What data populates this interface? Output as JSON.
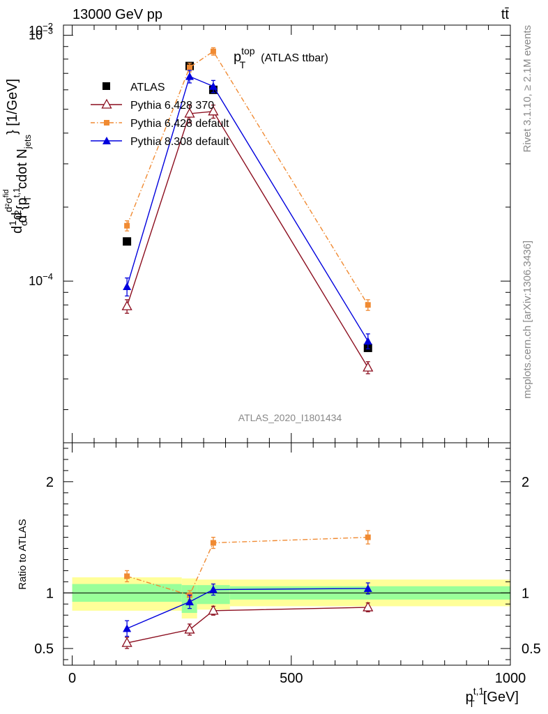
{
  "header": {
    "energy_label": "13000 GeV pp",
    "process_label": "tt̄"
  },
  "side_text": {
    "rivet": "Rivet 3.1.10, ≥ 2.1M events",
    "mcplots": "mcplots.cern.ch [arXiv:1306.3436]"
  },
  "colors": {
    "atlas": "#000000",
    "pythia6_370": "#8b0d1e",
    "pythia6_default": "#f08a32",
    "pythia8": "#0000dd",
    "band_inner": "#99ff99",
    "band_outer": "#ffff99"
  },
  "chart_data": [
    {
      "type": "scatter",
      "panel": "main",
      "title": "p_T^top (ATLAS ttbar)",
      "title_parts": {
        "main": "p",
        "sup": "top",
        "sub": "T",
        "rest": "(ATLAS ttbar)"
      },
      "watermark": "ATLAS_2020_I1801434",
      "ylabel": "d²σ / d{p_T^t,1} cdot N_jets [1/GeV]",
      "ylabel_parts": {
        "d": "d",
        "one": "1",
        "sigma": "σ",
        "d2sigma": "d²σ",
        "fid": "fid",
        "d2": "d",
        "two": "2",
        "brace_open": "{p",
        "t1": "t,1",
        "sub_T": "T",
        "cdot": "cdot N",
        "jets": "jets",
        "unit": "} [1/GeV]"
      },
      "yscale": "log",
      "ylim": [
        2.2e-05,
        0.0011
      ],
      "xlim": [
        -20,
        1000
      ],
      "yticks": [
        {
          "value": 0.01,
          "base": "10",
          "exp": "−2"
        },
        {
          "value": 0.001,
          "base": "10",
          "exp": "−3"
        },
        {
          "value": 0.0001,
          "base": "10",
          "exp": "−4"
        }
      ],
      "legend_position": "top-left",
      "series": [
        {
          "name": "ATLAS",
          "marker": "square",
          "x": [
            125,
            268,
            322,
            675
          ],
          "y": [
            0.000145,
            0.00075,
            0.0006,
            5.35e-05
          ],
          "yerr": [
            4e-06,
            1.8e-05,
            1.2e-05,
            1.5e-06
          ]
        },
        {
          "name": "Pythia 6.428 370",
          "marker": "open-triangle",
          "line": "solid",
          "x": [
            125,
            268,
            322,
            675
          ],
          "y": [
            7.9e-05,
            0.00048,
            0.00049,
            4.45e-05
          ],
          "yerr": [
            5e-06,
            4e-05,
            3e-05,
            2.5e-06
          ]
        },
        {
          "name": "Pythia 6.428 default",
          "marker": "small-square",
          "line": "dashdot",
          "x": [
            125,
            268,
            322,
            675
          ],
          "y": [
            0.000168,
            0.00074,
            0.00086,
            8e-05
          ],
          "yerr": [
            8e-06,
            3e-05,
            3e-05,
            4e-06
          ]
        },
        {
          "name": "Pythia 8.308 default",
          "marker": "triangle",
          "line": "solid",
          "x": [
            125,
            268,
            322,
            675
          ],
          "y": [
            9.5e-05,
            0.00068,
            0.00062,
            5.7e-05
          ],
          "yerr": [
            8e-06,
            4e-05,
            3.5e-05,
            4e-06
          ]
        }
      ]
    },
    {
      "type": "scatter",
      "panel": "ratio",
      "ylabel": "Ratio to ATLAS",
      "xlabel": "p_T^t,1 [GeV]",
      "xlabel_parts": {
        "main": "p",
        "sup": "t,1",
        "sub": "T",
        "rest": "[GeV]"
      },
      "xlim": [
        -20,
        1000
      ],
      "ylim": [
        0.35,
        2.35
      ],
      "xticks": [
        0,
        500,
        1000
      ],
      "yticks": [
        0.5,
        1,
        2
      ],
      "reference_line": 1,
      "bands": [
        {
          "x": [
            0,
            250
          ],
          "inner": [
            0.92,
            1.08
          ],
          "outer": [
            0.84,
            1.14
          ]
        },
        {
          "x": [
            250,
            285
          ],
          "inner": [
            0.82,
            1.07
          ],
          "outer": [
            0.77,
            1.13
          ]
        },
        {
          "x": [
            285,
            360
          ],
          "inner": [
            0.9,
            1.07
          ],
          "outer": [
            0.85,
            1.12
          ]
        },
        {
          "x": [
            360,
            1000
          ],
          "inner": [
            0.94,
            1.06
          ],
          "outer": [
            0.88,
            1.12
          ]
        }
      ],
      "series": [
        {
          "name": "Pythia 6.428 370",
          "x": [
            125,
            268,
            322,
            675
          ],
          "y": [
            0.55,
            0.67,
            0.84,
            0.87
          ],
          "yerr": [
            0.05,
            0.05,
            0.04,
            0.04
          ]
        },
        {
          "name": "Pythia 6.428 default",
          "x": [
            125,
            268,
            322,
            675
          ],
          "y": [
            1.15,
            0.98,
            1.45,
            1.5
          ],
          "yerr": [
            0.05,
            0.04,
            0.05,
            0.06
          ]
        },
        {
          "name": "Pythia 8.308 default",
          "x": [
            125,
            268,
            322,
            675
          ],
          "y": [
            0.68,
            0.92,
            1.03,
            1.04
          ],
          "yerr": [
            0.07,
            0.06,
            0.05,
            0.05
          ]
        }
      ]
    }
  ]
}
